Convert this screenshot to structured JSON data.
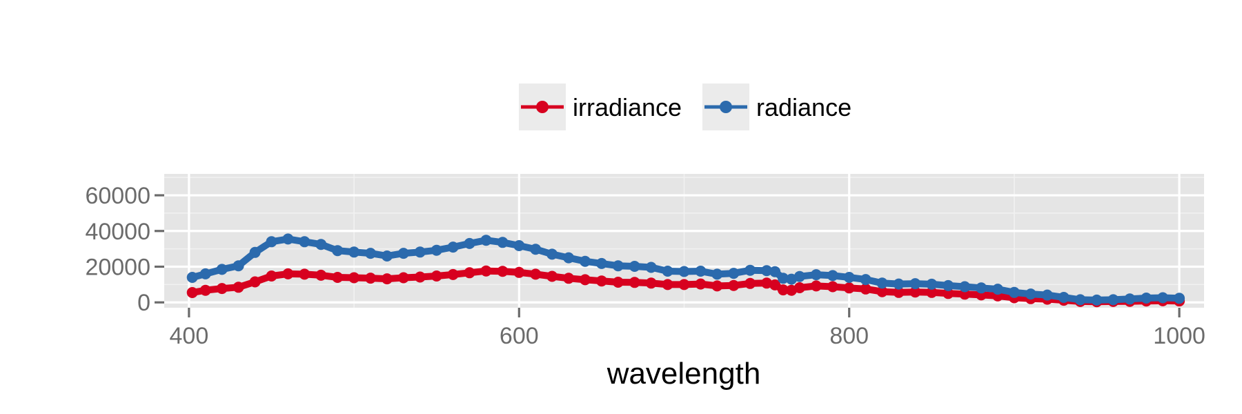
{
  "chart_data": {
    "type": "line",
    "title": "",
    "xlabel": "wavelength",
    "ylabel": "",
    "xlim": [
      385,
      1015
    ],
    "ylim": [
      -3000,
      72000
    ],
    "x_ticks": [
      400,
      600,
      800,
      1000
    ],
    "x_tick_labels": [
      "400",
      "600",
      "800",
      "1000"
    ],
    "y_ticks": [
      0,
      20000,
      40000,
      60000
    ],
    "y_tick_labels": [
      "0",
      "20000",
      "40000",
      "60000"
    ],
    "grid": true,
    "legend_position": "top",
    "series": [
      {
        "name": "irradiance",
        "color": "#d7001f",
        "points": [
          [
            402,
            5500
          ],
          [
            410,
            6800
          ],
          [
            420,
            7800
          ],
          [
            430,
            8500
          ],
          [
            440,
            11500
          ],
          [
            450,
            14800
          ],
          [
            460,
            16000
          ],
          [
            470,
            15800
          ],
          [
            480,
            15200
          ],
          [
            490,
            14000
          ],
          [
            500,
            13800
          ],
          [
            510,
            13600
          ],
          [
            520,
            13200
          ],
          [
            530,
            13800
          ],
          [
            540,
            14200
          ],
          [
            550,
            14800
          ],
          [
            560,
            15600
          ],
          [
            570,
            16600
          ],
          [
            580,
            17600
          ],
          [
            590,
            17400
          ],
          [
            600,
            16800
          ],
          [
            610,
            15800
          ],
          [
            620,
            14600
          ],
          [
            630,
            13500
          ],
          [
            640,
            12700
          ],
          [
            650,
            12000
          ],
          [
            660,
            11300
          ],
          [
            670,
            11200
          ],
          [
            680,
            10800
          ],
          [
            690,
            10000
          ],
          [
            700,
            10000
          ],
          [
            710,
            10300
          ],
          [
            720,
            9200
          ],
          [
            730,
            9500
          ],
          [
            740,
            10600
          ],
          [
            750,
            10800
          ],
          [
            755,
            9800
          ],
          [
            760,
            7000
          ],
          [
            765,
            6800
          ],
          [
            770,
            8200
          ],
          [
            780,
            9200
          ],
          [
            790,
            8800
          ],
          [
            800,
            8100
          ],
          [
            810,
            7500
          ],
          [
            820,
            6000
          ],
          [
            830,
            5600
          ],
          [
            840,
            5800
          ],
          [
            850,
            5600
          ],
          [
            860,
            5000
          ],
          [
            870,
            4600
          ],
          [
            880,
            4200
          ],
          [
            890,
            3600
          ],
          [
            900,
            2600
          ],
          [
            910,
            2100
          ],
          [
            920,
            1800
          ],
          [
            930,
            1200
          ],
          [
            940,
            500
          ],
          [
            950,
            400
          ],
          [
            960,
            500
          ],
          [
            970,
            600
          ],
          [
            980,
            800
          ],
          [
            990,
            900
          ],
          [
            1000,
            800
          ]
        ]
      },
      {
        "name": "radiance",
        "color": "#2b6aad",
        "points": [
          [
            402,
            14000
          ],
          [
            410,
            16000
          ],
          [
            420,
            18500
          ],
          [
            430,
            20500
          ],
          [
            440,
            28000
          ],
          [
            450,
            34000
          ],
          [
            460,
            35500
          ],
          [
            470,
            34000
          ],
          [
            480,
            32500
          ],
          [
            490,
            29000
          ],
          [
            500,
            28200
          ],
          [
            510,
            27500
          ],
          [
            520,
            26000
          ],
          [
            530,
            27500
          ],
          [
            540,
            28200
          ],
          [
            550,
            29200
          ],
          [
            560,
            31000
          ],
          [
            570,
            33000
          ],
          [
            580,
            34800
          ],
          [
            590,
            33600
          ],
          [
            600,
            31800
          ],
          [
            610,
            29800
          ],
          [
            620,
            27000
          ],
          [
            630,
            25000
          ],
          [
            640,
            23000
          ],
          [
            650,
            21800
          ],
          [
            660,
            20500
          ],
          [
            670,
            20200
          ],
          [
            680,
            19600
          ],
          [
            690,
            17500
          ],
          [
            700,
            17300
          ],
          [
            710,
            17500
          ],
          [
            720,
            15800
          ],
          [
            730,
            16300
          ],
          [
            740,
            18000
          ],
          [
            750,
            17800
          ],
          [
            755,
            17200
          ],
          [
            760,
            13500
          ],
          [
            765,
            13000
          ],
          [
            770,
            14500
          ],
          [
            780,
            15500
          ],
          [
            790,
            15000
          ],
          [
            800,
            14000
          ],
          [
            810,
            12800
          ],
          [
            820,
            10800
          ],
          [
            830,
            10300
          ],
          [
            840,
            10500
          ],
          [
            850,
            10200
          ],
          [
            860,
            9400
          ],
          [
            870,
            8800
          ],
          [
            880,
            8100
          ],
          [
            890,
            7400
          ],
          [
            900,
            5600
          ],
          [
            910,
            4700
          ],
          [
            920,
            4100
          ],
          [
            930,
            2800
          ],
          [
            940,
            1500
          ],
          [
            950,
            1300
          ],
          [
            960,
            1500
          ],
          [
            970,
            1900
          ],
          [
            980,
            2400
          ],
          [
            990,
            2600
          ],
          [
            1000,
            2300
          ]
        ]
      }
    ]
  }
}
